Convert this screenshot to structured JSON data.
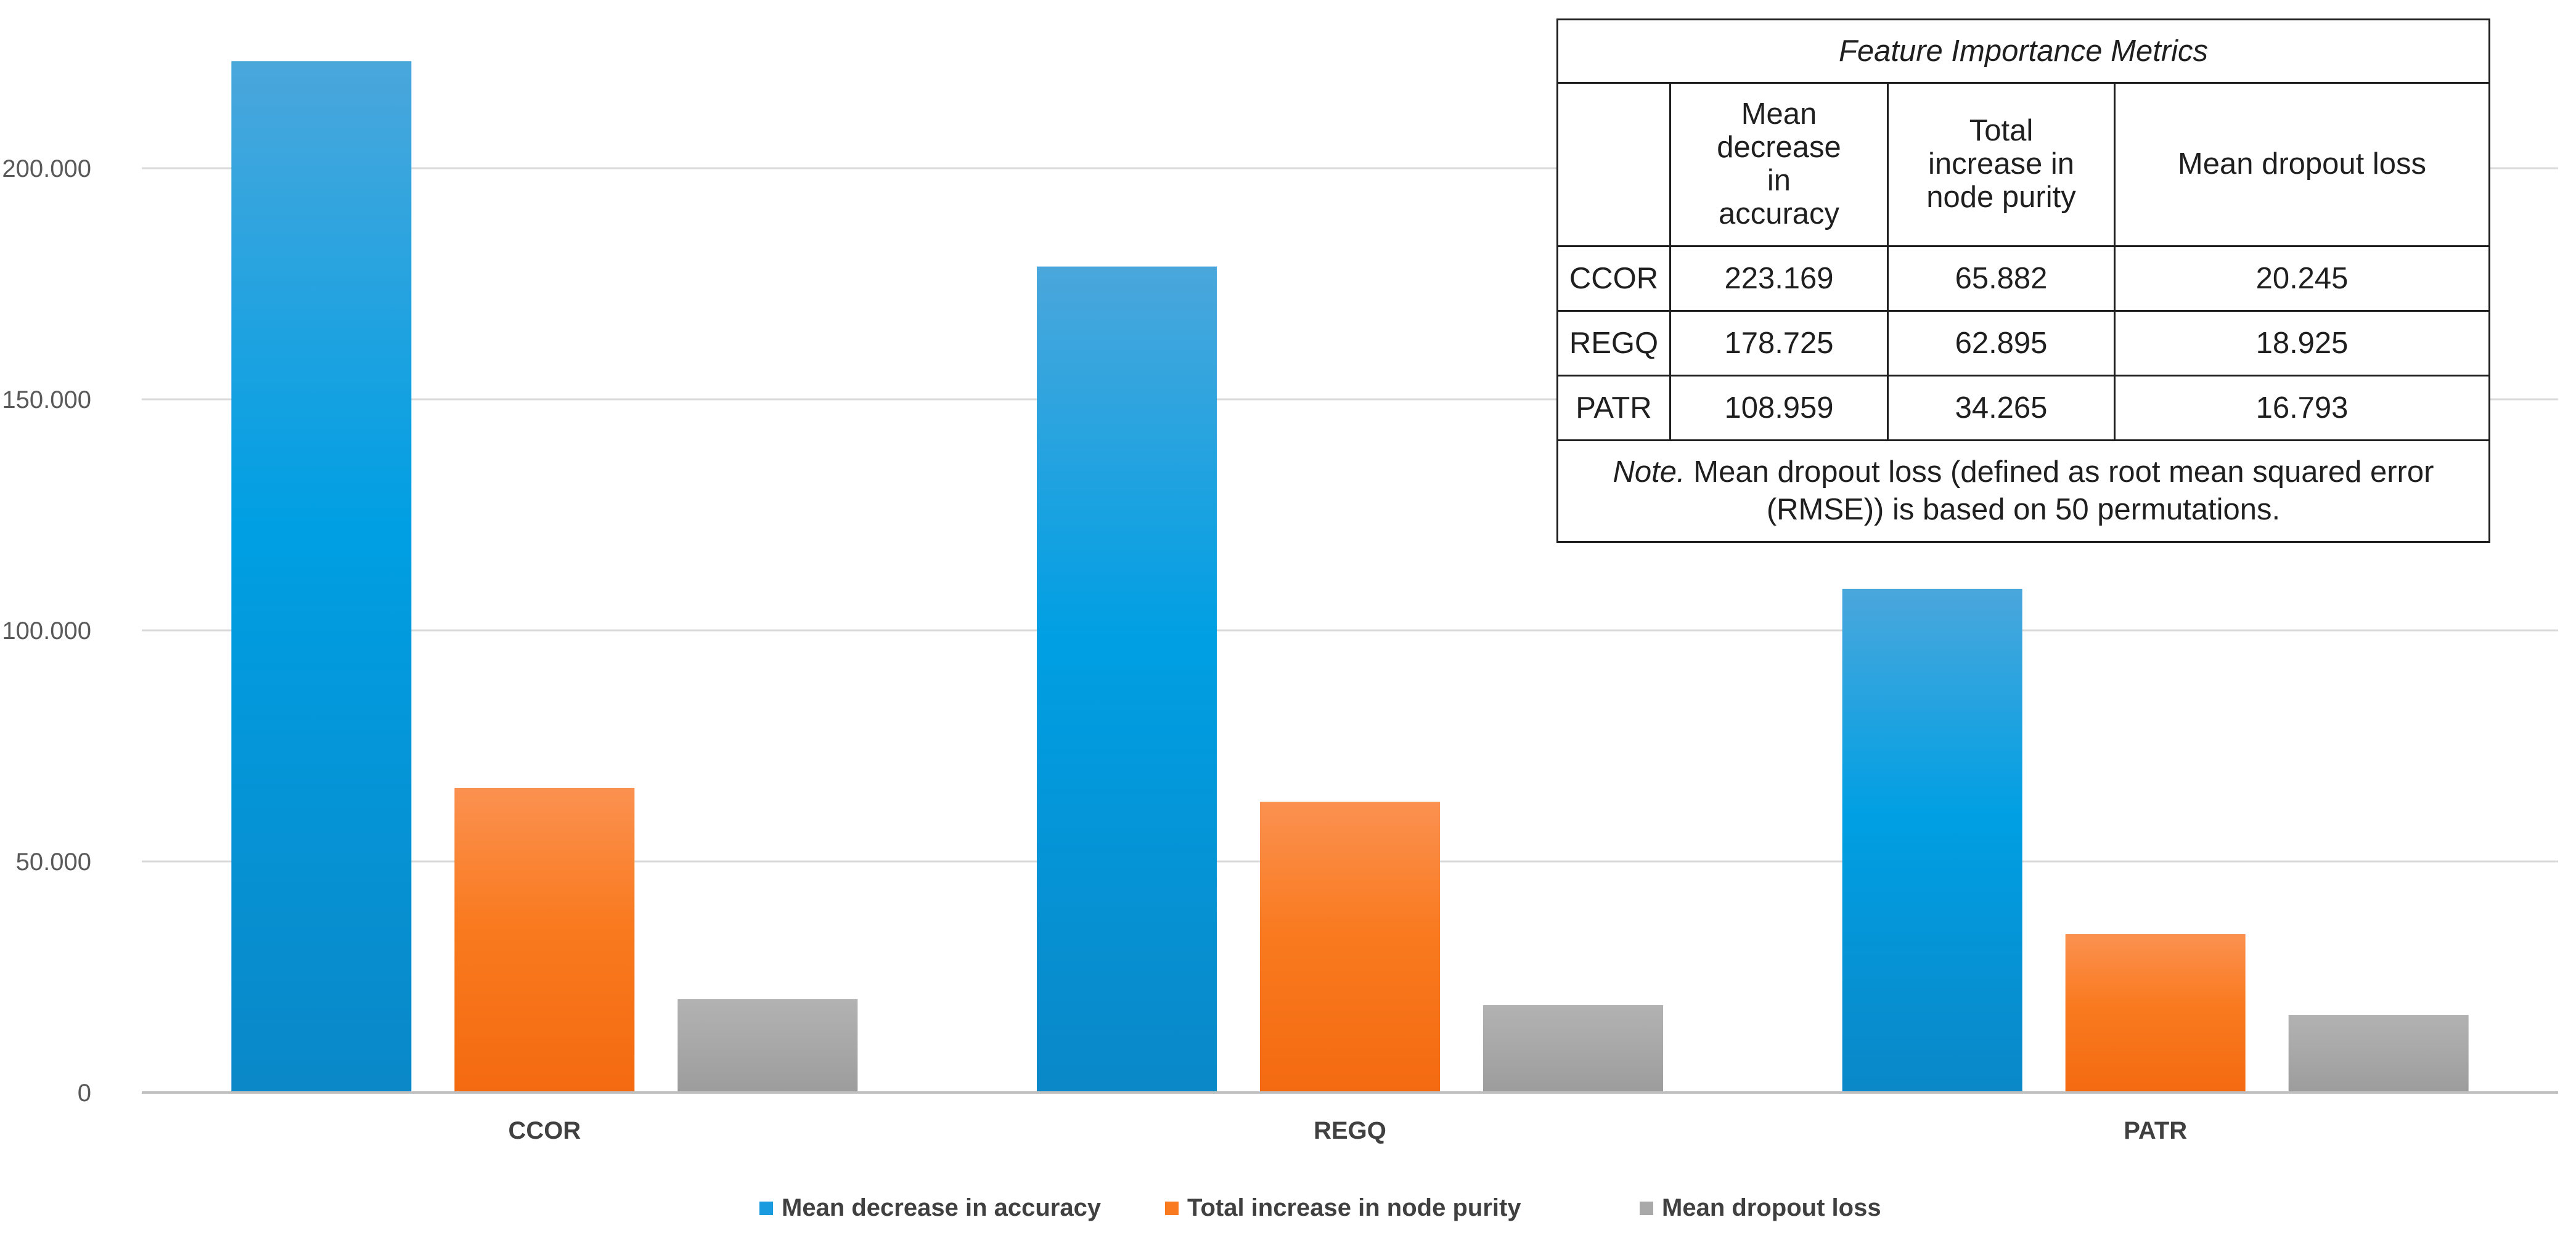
{
  "chart_data": {
    "type": "bar",
    "categories": [
      "CCOR",
      "REGQ",
      "PATR"
    ],
    "series": [
      {
        "name": "Mean decrease in accuracy",
        "color": "#1a9be0",
        "values": [
          223.169,
          178.725,
          108.959
        ]
      },
      {
        "name": "Total increase in node purity",
        "color": "#f97a1f",
        "values": [
          65.882,
          62.895,
          34.265
        ]
      },
      {
        "name": "Mean dropout loss",
        "color": "#a9a9a9",
        "values": [
          20.245,
          18.925,
          16.793
        ]
      }
    ],
    "yticks": [
      0,
      50,
      100,
      150,
      200
    ],
    "ytick_labels": [
      "0",
      "50.000",
      "100.000",
      "150.000",
      "200.000"
    ],
    "ylim": [
      0,
      230
    ],
    "grid": true,
    "legend_position": "bottom"
  },
  "table": {
    "caption": "Feature Importance Metrics",
    "columns": [
      "",
      "Mean decrease in accuracy",
      "Total increase in node purity",
      "Mean dropout loss"
    ],
    "header_lines": [
      [
        "Mean",
        "decrease",
        "in",
        "accuracy"
      ],
      [
        "Total",
        "increase in",
        "node purity"
      ],
      [
        "Mean dropout loss"
      ]
    ],
    "rows": [
      [
        "CCOR",
        "223.169",
        "65.882",
        "20.245"
      ],
      [
        "REGQ",
        "178.725",
        "62.895",
        "18.925"
      ],
      [
        "PATR",
        "108.959",
        "34.265",
        "16.793"
      ]
    ],
    "note_prefix": "Note.",
    "note_text": " Mean dropout loss (defined as root mean squared error (RMSE)) is based on 50 permutations."
  }
}
